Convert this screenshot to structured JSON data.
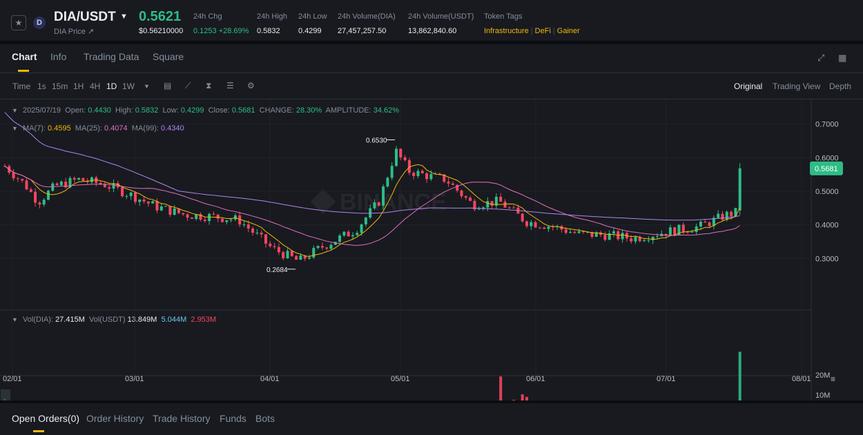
{
  "header": {
    "star_icon": "star-icon",
    "coin_letter": "D",
    "pair": "DIA/USDT",
    "sub_label": "DIA Price ↗",
    "last_price": "0.5621",
    "last_price_usd": "$0.56210000",
    "change_label": "24h Chg",
    "change_value": "0.1253 +28.69%",
    "high_label": "24h High",
    "high_value": "0.5832",
    "low_label": "24h Low",
    "low_value": "0.4299",
    "vol_base_label": "24h Volume(DIA)",
    "vol_base_value": "27,457,257.50",
    "vol_quote_label": "24h Volume(USDT)",
    "vol_quote_value": "13,862,840.60",
    "tags_label": "Token Tags",
    "tags": [
      "Infrastructure",
      "DeFi",
      "Gainer"
    ]
  },
  "tabs": [
    "Chart",
    "Info",
    "Trading Data",
    "Square"
  ],
  "toolbar": {
    "intervals": [
      "Time",
      "1s",
      "15m",
      "1H",
      "4H",
      "1D",
      "1W"
    ],
    "active_interval": "1D",
    "views": [
      "Original",
      "Trading View",
      "Depth"
    ],
    "active_view": "Original"
  },
  "ohlc": {
    "date": "2025/07/19",
    "open_label": "Open:",
    "open": "0.4430",
    "high_label": "High:",
    "high": "0.5832",
    "low_label": "Low:",
    "low": "0.4299",
    "close_label": "Close:",
    "close": "0.5681",
    "change_label": "CHANGE:",
    "change": "28.30%",
    "amp_label": "AMPLITUDE:",
    "amp": "34.62%"
  },
  "ma": {
    "ma7_label": "MA(7):",
    "ma7": "0.4595",
    "ma25_label": "MA(25):",
    "ma25": "0.4074",
    "ma99_label": "MA(99):",
    "ma99": "0.4340"
  },
  "vol": {
    "dia_label": "Vol(DIA):",
    "dia": "27.415M",
    "usdt_label": "Vol(USDT)",
    "usdt": "13.849M",
    "ma1": "5.044M",
    "ma2": "2.953M"
  },
  "chart_data": {
    "type": "candlestick",
    "price_ticks": [
      "0.7000",
      "0.6000",
      "0.5000",
      "0.4000",
      "0.3000"
    ],
    "vol_ticks": [
      "20M",
      "10M"
    ],
    "date_ticks": [
      "02/01",
      "03/01",
      "04/01",
      "05/01",
      "06/01",
      "07/01",
      "08/01"
    ],
    "current_price_label": "0.5681",
    "max_label": "0.6530",
    "min_label": "0.2684",
    "colors": {
      "up": "#2ebd85",
      "down": "#f6465d",
      "ma7": "#f0b90b",
      "ma25": "#e46dc0",
      "ma99": "#b185f0"
    }
  },
  "bottom_tabs": [
    "Open Orders(0)",
    "Order History",
    "Trade History",
    "Funds",
    "Bots"
  ]
}
